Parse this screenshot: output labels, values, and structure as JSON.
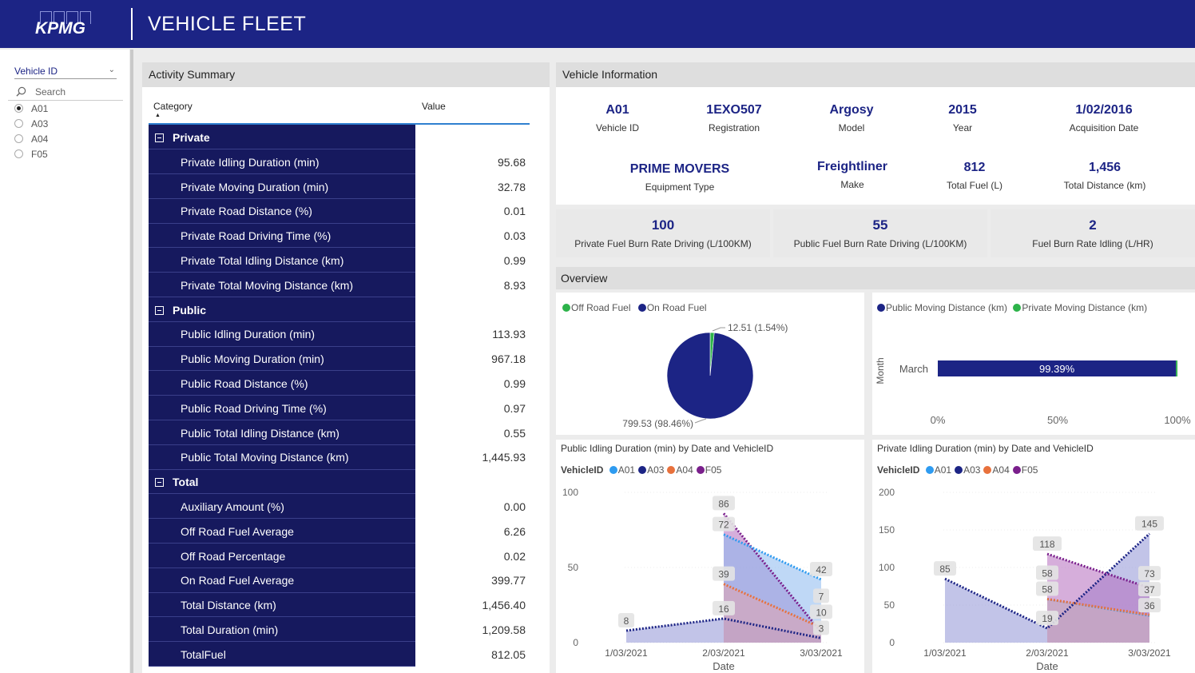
{
  "header": {
    "logo_text": "KPMG",
    "title": "VEHICLE FLEET"
  },
  "slicer": {
    "title": "Vehicle ID",
    "search_placeholder": "Search",
    "options": [
      {
        "label": "A01",
        "selected": true
      },
      {
        "label": "A03",
        "selected": false
      },
      {
        "label": "A04",
        "selected": false
      },
      {
        "label": "F05",
        "selected": false
      }
    ]
  },
  "activity": {
    "title": "Activity Summary",
    "col_category": "Category",
    "col_value": "Value",
    "rows": [
      {
        "kind": "group",
        "label": "Private"
      },
      {
        "kind": "item",
        "label": "Private Idling Duration (min)",
        "value": "95.68"
      },
      {
        "kind": "item",
        "label": "Private Moving Duration (min)",
        "value": "32.78"
      },
      {
        "kind": "item",
        "label": "Private Road Distance (%)",
        "value": "0.01"
      },
      {
        "kind": "item",
        "label": "Private Road Driving Time (%)",
        "value": "0.03"
      },
      {
        "kind": "item",
        "label": "Private Total Idling Distance (km)",
        "value": "0.99"
      },
      {
        "kind": "item",
        "label": "Private Total Moving Distance (km)",
        "value": "8.93"
      },
      {
        "kind": "group",
        "label": "Public"
      },
      {
        "kind": "item",
        "label": "Public Idling Duration (min)",
        "value": "113.93"
      },
      {
        "kind": "item",
        "label": "Public Moving Duration (min)",
        "value": "967.18"
      },
      {
        "kind": "item",
        "label": "Public Road Distance (%)",
        "value": "0.99"
      },
      {
        "kind": "item",
        "label": "Public Road Driving Time (%)",
        "value": "0.97"
      },
      {
        "kind": "item",
        "label": "Public Total Idling Distance (km)",
        "value": "0.55"
      },
      {
        "kind": "item",
        "label": "Public Total Moving Distance (km)",
        "value": "1,445.93"
      },
      {
        "kind": "group",
        "label": "Total"
      },
      {
        "kind": "item",
        "label": "Auxiliary Amount (%)",
        "value": "0.00"
      },
      {
        "kind": "item",
        "label": "Off Road Fuel Average",
        "value": "6.26"
      },
      {
        "kind": "item",
        "label": "Off Road Percentage",
        "value": "0.02"
      },
      {
        "kind": "item",
        "label": "On Road Fuel Average",
        "value": "399.77"
      },
      {
        "kind": "item",
        "label": "Total Distance (km)",
        "value": "1,456.40"
      },
      {
        "kind": "item",
        "label": "Total Duration (min)",
        "value": "1,209.58"
      },
      {
        "kind": "item",
        "label": "TotalFuel",
        "value": "812.05"
      }
    ]
  },
  "vehicle_info": {
    "title": "Vehicle Information",
    "fields": [
      {
        "value": "A01",
        "label": "Vehicle ID"
      },
      {
        "value": "1EXO507",
        "label": "Registration"
      },
      {
        "value": "Argosy",
        "label": "Model"
      },
      {
        "value": "2015",
        "label": "Year"
      },
      {
        "value": "1/02/2016",
        "label": "Acquisition Date"
      },
      {
        "value": "PRIME MOVERS",
        "label": "Equipment Type"
      },
      {
        "value": "Freightliner",
        "label": "Make"
      },
      {
        "value": "812",
        "label": "Total Fuel (L)"
      },
      {
        "value": "1,456",
        "label": "Total Distance (km)"
      }
    ],
    "kpis": [
      {
        "value": "100",
        "label": "Private Fuel Burn Rate Driving (L/100KM)"
      },
      {
        "value": "55",
        "label": "Public Fuel Burn Rate Driving (L/100KM)"
      },
      {
        "value": "2",
        "label": "Fuel Burn Rate Idling (L/HR)"
      }
    ]
  },
  "overview": {
    "title": "Overview"
  },
  "colors": {
    "navy": "#16195e",
    "brand": "#1c2485",
    "green": "#2db34a",
    "a01": "#2e9bf0",
    "a03": "#1c2485",
    "a04": "#e8713c",
    "f05": "#7a1f8c"
  },
  "chart_data": [
    {
      "type": "pie",
      "legend": [
        "Off Road Fuel",
        "On Road Fuel"
      ],
      "slices": [
        {
          "name": "Off Road Fuel",
          "value": 12.51,
          "label": "12.51 (1.54%)"
        },
        {
          "name": "On Road Fuel",
          "value": 799.53,
          "label": "799.53 (98.46%)"
        }
      ]
    },
    {
      "type": "bar",
      "orientation": "horizontal-stacked-100",
      "legend": [
        "Public Moving Distance (km)",
        "Private Moving Distance (km)"
      ],
      "ylabel": "Month",
      "categories": [
        "March"
      ],
      "series": [
        {
          "name": "Public Moving Distance (km)",
          "values": [
            99.39
          ]
        },
        {
          "name": "Private Moving Distance (km)",
          "values": [
            0.61
          ]
        }
      ],
      "data_label": "99.39%",
      "ticks": [
        "0%",
        "50%",
        "100%"
      ]
    },
    {
      "type": "area",
      "title": "Public Idling Duration (min) by Date and VehicleID",
      "legend_title": "VehicleID",
      "xlabel": "Date",
      "x": [
        "1/03/2021",
        "2/03/2021",
        "3/03/2021"
      ],
      "ylim": [
        0,
        100
      ],
      "yticks": [
        "0",
        "50",
        "100"
      ],
      "series": [
        {
          "name": "A01",
          "values": [
            null,
            72,
            42
          ]
        },
        {
          "name": "A03",
          "values": [
            8,
            16,
            3
          ]
        },
        {
          "name": "A04",
          "values": [
            null,
            39,
            10
          ]
        },
        {
          "name": "F05",
          "values": [
            null,
            86,
            7
          ]
        }
      ],
      "data_labels": [
        "86",
        "72",
        "39",
        "16",
        "8",
        "42",
        "3",
        "7"
      ]
    },
    {
      "type": "area",
      "title": "Private Idling Duration (min) by Date and VehicleID",
      "legend_title": "VehicleID",
      "xlabel": "Date",
      "x": [
        "1/03/2021",
        "2/03/2021",
        "3/03/2021"
      ],
      "ylim": [
        0,
        200
      ],
      "yticks": [
        "0",
        "50",
        "100",
        "150",
        "200"
      ],
      "series": [
        {
          "name": "A01",
          "values": [
            null,
            58,
            36
          ]
        },
        {
          "name": "A03",
          "values": [
            85,
            19,
            145
          ]
        },
        {
          "name": "A04",
          "values": [
            null,
            58,
            37
          ]
        },
        {
          "name": "F05",
          "values": [
            null,
            118,
            73
          ]
        }
      ],
      "data_labels": [
        "85",
        "118",
        "58",
        "19",
        "145",
        "73",
        "36",
        "37"
      ]
    }
  ]
}
